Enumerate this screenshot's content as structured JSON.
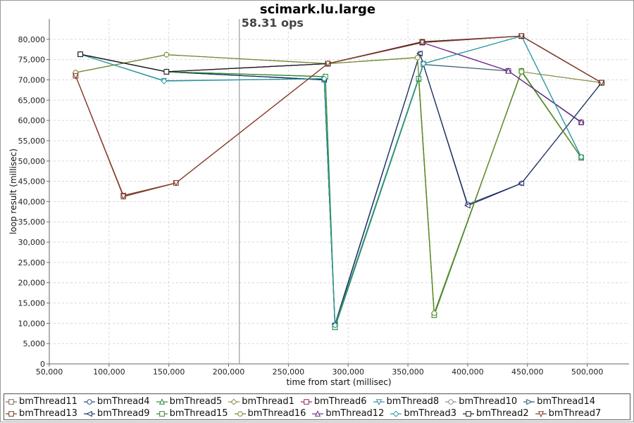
{
  "chart_data": {
    "type": "line",
    "title": "scimark.lu.large",
    "annotation": "58.31 ops",
    "annotation_x": 209000,
    "xlabel": "time from start (millisec)",
    "ylabel": "loop result (millisec)",
    "xlim": [
      50000,
      535000
    ],
    "ylim": [
      0,
      85000
    ],
    "x_ticks": [
      50000,
      100000,
      150000,
      200000,
      250000,
      300000,
      350000,
      400000,
      450000,
      500000
    ],
    "x_tick_labels": [
      "50,000",
      "100,000",
      "150,000",
      "200,000",
      "250,000",
      "300,000",
      "350,000",
      "400,000",
      "450,000",
      "500,000"
    ],
    "y_ticks": [
      0,
      5000,
      10000,
      15000,
      20000,
      25000,
      30000,
      35000,
      40000,
      45000,
      50000,
      55000,
      60000,
      65000,
      70000,
      75000,
      80000
    ],
    "y_tick_labels": [
      "0",
      "5,000",
      "10,000",
      "15,000",
      "20,000",
      "25,000",
      "30,000",
      "35,000",
      "40,000",
      "45,000",
      "50,000",
      "55,000",
      "60,000",
      "65,000",
      "70,000",
      "75,000",
      "80,000"
    ],
    "grid": true,
    "legend_position": "bottom",
    "series": [
      {
        "name": "bmThread11",
        "color": "#7a6a5a",
        "marker": "square",
        "points": [
          [
            72000,
            71000
          ],
          [
            112000,
            41200
          ],
          [
            156000,
            44600
          ],
          [
            283000,
            74000
          ],
          [
            362000,
            79200
          ],
          [
            445000,
            80800
          ],
          [
            512000,
            69300
          ]
        ]
      },
      {
        "name": "bmThread4",
        "color": "#2a4a7a",
        "marker": "circle",
        "points": [
          [
            76000,
            76300
          ],
          [
            148000,
            72000
          ],
          [
            280000,
            70000
          ],
          [
            289000,
            9500
          ],
          [
            360000,
            76500
          ],
          [
            400000,
            39300
          ],
          [
            445000,
            44500
          ],
          [
            512000,
            69300
          ]
        ]
      },
      {
        "name": "bmThread5",
        "color": "#2e8b3e",
        "marker": "triangle-up",
        "points": [
          [
            76000,
            76300
          ],
          [
            148000,
            72000
          ],
          [
            280000,
            70800
          ],
          [
            289000,
            9000
          ],
          [
            359000,
            70200
          ],
          [
            372000,
            12000
          ],
          [
            445000,
            72200
          ],
          [
            495000,
            50900
          ]
        ]
      },
      {
        "name": "bmThread1",
        "color": "#8a8a4a",
        "marker": "diamond",
        "points": [
          [
            72000,
            71800
          ],
          [
            148000,
            76200
          ],
          [
            283000,
            74000
          ],
          [
            358000,
            75500
          ],
          [
            372000,
            12500
          ],
          [
            445000,
            72000
          ],
          [
            512000,
            69300
          ]
        ]
      },
      {
        "name": "bmThread6",
        "color": "#8a2a6a",
        "marker": "square",
        "points": [
          [
            76000,
            76300
          ],
          [
            148000,
            72000
          ],
          [
            283000,
            74000
          ],
          [
            362000,
            79200
          ],
          [
            434000,
            72200
          ],
          [
            495000,
            59500
          ]
        ]
      },
      {
        "name": "bmThread8",
        "color": "#3a8aa0",
        "marker": "triangle-down",
        "points": [
          [
            76000,
            76300
          ],
          [
            146000,
            69800
          ],
          [
            280000,
            70300
          ],
          [
            289000,
            9500
          ],
          [
            363000,
            74000
          ],
          [
            445000,
            80800
          ],
          [
            495000,
            50900
          ]
        ]
      },
      {
        "name": "bmThread10",
        "color": "#888888",
        "marker": "circle",
        "points": [
          [
            76000,
            76300
          ],
          [
            148000,
            72000
          ],
          [
            283000,
            74000
          ],
          [
            362000,
            79200
          ],
          [
            445000,
            80800
          ],
          [
            512000,
            69300
          ]
        ]
      },
      {
        "name": "bmThread14",
        "color": "#2a5a6a",
        "marker": "triangle-right",
        "points": [
          [
            76000,
            76300
          ],
          [
            148000,
            72000
          ],
          [
            280000,
            70000
          ],
          [
            289000,
            9500
          ],
          [
            363000,
            73800
          ],
          [
            434000,
            72200
          ],
          [
            495000,
            59500
          ]
        ]
      },
      {
        "name": "bmThread13",
        "color": "#7a3a2a",
        "marker": "square",
        "points": [
          [
            72000,
            71000
          ],
          [
            112000,
            41500
          ],
          [
            156000,
            44600
          ],
          [
            283000,
            74000
          ],
          [
            362000,
            79400
          ],
          [
            445000,
            80800
          ],
          [
            512000,
            69300
          ]
        ]
      },
      {
        "name": "bmThread9",
        "color": "#1a2a5a",
        "marker": "triangle-left",
        "points": [
          [
            76000,
            76300
          ],
          [
            148000,
            72000
          ],
          [
            280000,
            70000
          ],
          [
            289000,
            9800
          ],
          [
            360000,
            76500
          ],
          [
            400000,
            39000
          ],
          [
            445000,
            44500
          ],
          [
            512000,
            69300
          ]
        ]
      },
      {
        "name": "bmThread15",
        "color": "#2a8a2a",
        "marker": "square",
        "points": [
          [
            76000,
            76300
          ],
          [
            148000,
            72000
          ],
          [
            281000,
            70800
          ],
          [
            289000,
            9000
          ],
          [
            359000,
            70300
          ],
          [
            372000,
            12000
          ],
          [
            445000,
            72200
          ],
          [
            495000,
            50800
          ]
        ]
      },
      {
        "name": "bmThread16",
        "color": "#6a8a2a",
        "marker": "circle",
        "points": [
          [
            72000,
            71800
          ],
          [
            148000,
            76200
          ],
          [
            283000,
            74000
          ],
          [
            358000,
            75500
          ],
          [
            372000,
            12500
          ],
          [
            445000,
            72000
          ],
          [
            495000,
            50800
          ]
        ]
      },
      {
        "name": "bmThread12",
        "color": "#6a2a8a",
        "marker": "triangle-up",
        "points": [
          [
            76000,
            76300
          ],
          [
            148000,
            72000
          ],
          [
            283000,
            74000
          ],
          [
            362000,
            79200
          ],
          [
            434000,
            72200
          ],
          [
            495000,
            59600
          ]
        ]
      },
      {
        "name": "bmThread3",
        "color": "#2a9aa0",
        "marker": "diamond",
        "points": [
          [
            76000,
            76300
          ],
          [
            146000,
            69700
          ],
          [
            280000,
            70300
          ],
          [
            289000,
            9500
          ],
          [
            363000,
            74000
          ],
          [
            445000,
            80800
          ],
          [
            495000,
            51000
          ]
        ]
      },
      {
        "name": "bmThread2",
        "color": "#1a1a1a",
        "marker": "square",
        "points": [
          [
            76000,
            76300
          ],
          [
            148000,
            72000
          ],
          [
            283000,
            74000
          ],
          [
            362000,
            79300
          ],
          [
            445000,
            80800
          ],
          [
            512000,
            69300
          ]
        ]
      },
      {
        "name": "bmThread7",
        "color": "#8a3a2a",
        "marker": "triangle-down",
        "points": [
          [
            72000,
            71000
          ],
          [
            112000,
            41300
          ],
          [
            156000,
            44600
          ],
          [
            283000,
            74000
          ],
          [
            362000,
            79200
          ],
          [
            445000,
            80800
          ],
          [
            512000,
            69300
          ]
        ]
      }
    ]
  }
}
